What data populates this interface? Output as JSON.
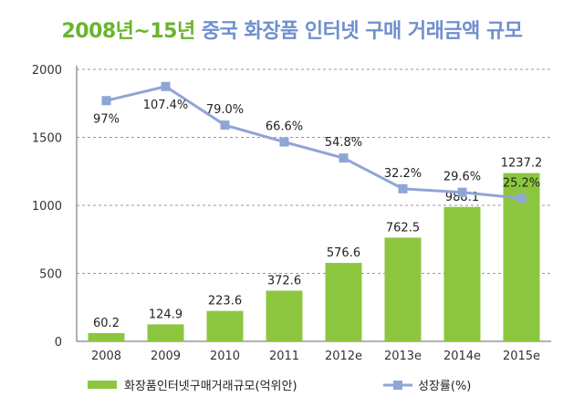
{
  "title": {
    "part1": "2008년~15년",
    "part2": "중국 화장품 인터넷 구매 거래금액 규모"
  },
  "colors": {
    "title_part1": "#6ab42d",
    "title_part2": "#6f8fcf",
    "bar": "#8cc63f",
    "line": "#8fa5d6",
    "marker": "#8fa5d6",
    "grid": "#9a9a9a"
  },
  "chart_data": {
    "type": "bar",
    "categories": [
      "2008",
      "2009",
      "2010",
      "2011",
      "2012e",
      "2013e",
      "2014e",
      "2015e"
    ],
    "series": [
      {
        "name": "화장품인터넷구매거래규모(억위안)",
        "type": "bar",
        "values": [
          60.2,
          124.9,
          223.6,
          372.6,
          576.6,
          762.5,
          988.1,
          1237.2
        ],
        "labels": [
          "60.2",
          "124.9",
          "223.6",
          "372.6",
          "576.6",
          "762.5",
          "988.1",
          "1237.2"
        ]
      },
      {
        "name": "성장률(%)",
        "type": "line",
        "values": [
          97,
          107.4,
          79.0,
          66.6,
          54.8,
          32.2,
          29.6,
          25.2
        ],
        "labels": [
          "97%",
          "107.4%",
          "79.0%",
          "66.6%",
          "54.8%",
          "32.2%",
          "29.6%",
          "25.2%"
        ]
      }
    ],
    "yticks": [
      "0",
      "500",
      "1000",
      "1500",
      "2000"
    ],
    "ylim": [
      0,
      2000
    ],
    "grid": true,
    "legend_position": "bottom"
  }
}
